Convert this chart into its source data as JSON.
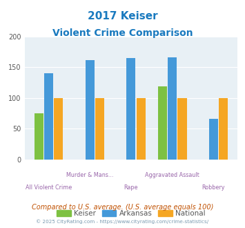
{
  "title_line1": "2017 Keiser",
  "title_line2": "Violent Crime Comparison",
  "title_color": "#1a7abf",
  "cat_labels_upper": [
    "",
    "Murder & Mans...",
    "",
    "Aggravated Assault",
    ""
  ],
  "cat_labels_lower": [
    "All Violent Crime",
    "",
    "Rape",
    "",
    "Robbery"
  ],
  "keiser_values": [
    75,
    0,
    0,
    119,
    0
  ],
  "arkansas_values": [
    140,
    162,
    165,
    166,
    66
  ],
  "national_values": [
    100,
    100,
    100,
    100,
    100
  ],
  "keiser_color": "#7dc142",
  "arkansas_color": "#4499d9",
  "national_color": "#f5a623",
  "ylim": [
    0,
    200
  ],
  "yticks": [
    0,
    50,
    100,
    150,
    200
  ],
  "bg_color": "#e8f0f5",
  "footnote1": "Compared to U.S. average. (U.S. average equals 100)",
  "footnote2": "© 2025 CityRating.com - https://www.cityrating.com/crime-statistics/",
  "footnote1_color": "#c05000",
  "footnote2_color": "#7a9ab0",
  "label_color": "#9966aa"
}
